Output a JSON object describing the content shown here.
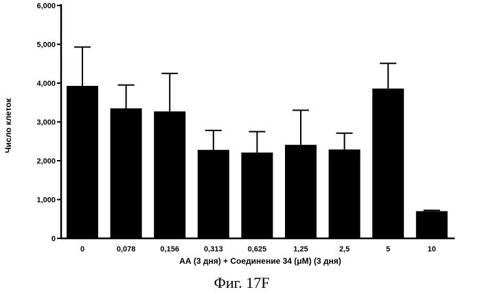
{
  "chart_data": {
    "type": "bar",
    "categories": [
      "0",
      "0,078",
      "0,156",
      "0,313",
      "0,625",
      "1,25",
      "2,5",
      "5",
      "10"
    ],
    "values": [
      3930,
      3350,
      3270,
      2280,
      2210,
      2410,
      2290,
      3860,
      700
    ],
    "errors": [
      1000,
      600,
      980,
      500,
      540,
      890,
      420,
      650,
      20
    ],
    "ylim": [
      0,
      6000
    ],
    "yticks": [
      0,
      1000,
      2000,
      3000,
      4000,
      5000,
      6000
    ],
    "ytick_labels": [
      "0",
      "1,000",
      "2,000",
      "3,000",
      "4,000",
      "5,000",
      "6,000"
    ],
    "ylabel": "Число клеток",
    "xlabel": "АА (3 дня)  + Соединение 34 (μМ) (3 дня)",
    "caption": "Фиг. 17F",
    "bar_color": "#000000"
  }
}
